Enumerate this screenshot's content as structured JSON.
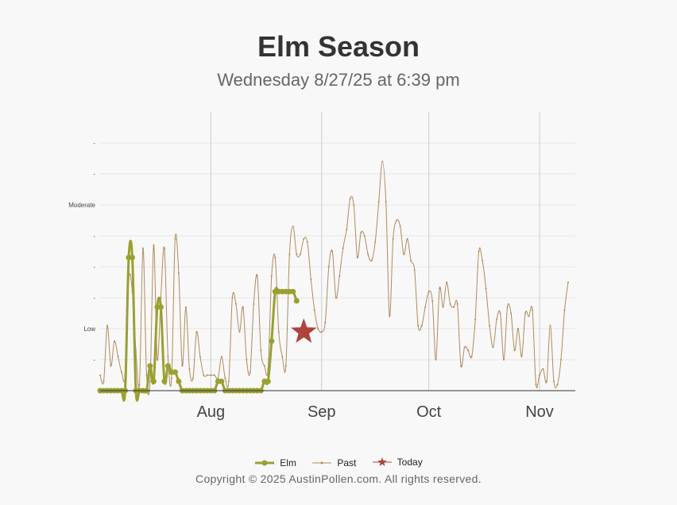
{
  "header": {
    "title": "Elm Season",
    "subtitle": "Wednesday 8/27/25 at 6:39 pm"
  },
  "footer": {
    "copyright": "Copyright © 2025 AustinPollen.com.  All rights reserved."
  },
  "colors": {
    "elm": "#99a032",
    "past": "#b08a5c",
    "today": "#b0413b",
    "grid": "#e6e6e6",
    "month_line": "#cccccc",
    "axis": "#333333"
  },
  "chart_data": {
    "type": "line",
    "x_axis": {
      "type": "date",
      "range": [
        "2025-07-01",
        "2025-11-11"
      ],
      "ticks": [
        {
          "date": "2025-08-01",
          "label": "Aug"
        },
        {
          "date": "2025-09-01",
          "label": "Sep"
        },
        {
          "date": "2025-10-01",
          "label": "Oct"
        },
        {
          "date": "2025-11-01",
          "label": "Nov"
        }
      ]
    },
    "y_axis": {
      "range": [
        0,
        9
      ],
      "ticks": [
        {
          "value": 1,
          "label": "-"
        },
        {
          "value": 2,
          "label": "Low"
        },
        {
          "value": 3,
          "label": "-"
        },
        {
          "value": 4,
          "label": "-"
        },
        {
          "value": 5,
          "label": "-"
        },
        {
          "value": 6,
          "label": "Moderate"
        },
        {
          "value": 7,
          "label": "-"
        },
        {
          "value": 8,
          "label": "-"
        }
      ]
    },
    "grid": true,
    "legend_position": "bottom",
    "series": [
      {
        "name": "Elm",
        "style": "line-markers",
        "points": [
          [
            "2025-07-01",
            0
          ],
          [
            "2025-07-02",
            0
          ],
          [
            "2025-07-03",
            0
          ],
          [
            "2025-07-04",
            0
          ],
          [
            "2025-07-05",
            0
          ],
          [
            "2025-07-06",
            0
          ],
          [
            "2025-07-07",
            0
          ],
          [
            "2025-07-08",
            0
          ],
          [
            "2025-07-09",
            4.3
          ],
          [
            "2025-07-10",
            4.3
          ],
          [
            "2025-07-11",
            0
          ],
          [
            "2025-07-12",
            0
          ],
          [
            "2025-07-13",
            0
          ],
          [
            "2025-07-14",
            0
          ],
          [
            "2025-07-15",
            0.8
          ],
          [
            "2025-07-16",
            0.3
          ],
          [
            "2025-07-17",
            2.7
          ],
          [
            "2025-07-18",
            2.7
          ],
          [
            "2025-07-19",
            0.3
          ],
          [
            "2025-07-20",
            0.8
          ],
          [
            "2025-07-21",
            0.6
          ],
          [
            "2025-07-22",
            0.6
          ],
          [
            "2025-07-23",
            0.3
          ],
          [
            "2025-07-24",
            0
          ],
          [
            "2025-07-25",
            0
          ],
          [
            "2025-07-26",
            0
          ],
          [
            "2025-07-27",
            0
          ],
          [
            "2025-07-28",
            0
          ],
          [
            "2025-07-29",
            0
          ],
          [
            "2025-07-30",
            0
          ],
          [
            "2025-07-31",
            0
          ],
          [
            "2025-08-01",
            0
          ],
          [
            "2025-08-02",
            0
          ],
          [
            "2025-08-03",
            0.3
          ],
          [
            "2025-08-04",
            0.3
          ],
          [
            "2025-08-05",
            0
          ],
          [
            "2025-08-06",
            0
          ],
          [
            "2025-08-07",
            0
          ],
          [
            "2025-08-08",
            0
          ],
          [
            "2025-08-09",
            0
          ],
          [
            "2025-08-10",
            0
          ],
          [
            "2025-08-11",
            0
          ],
          [
            "2025-08-12",
            0
          ],
          [
            "2025-08-13",
            0
          ],
          [
            "2025-08-14",
            0
          ],
          [
            "2025-08-15",
            0
          ],
          [
            "2025-08-16",
            0.3
          ],
          [
            "2025-08-17",
            0.3
          ],
          [
            "2025-08-18",
            1.6
          ],
          [
            "2025-08-19",
            3.2
          ],
          [
            "2025-08-20",
            3.2
          ],
          [
            "2025-08-21",
            3.2
          ],
          [
            "2025-08-22",
            3.2
          ],
          [
            "2025-08-23",
            3.2
          ],
          [
            "2025-08-24",
            3.2
          ],
          [
            "2025-08-25",
            2.9
          ]
        ]
      },
      {
        "name": "Past",
        "style": "thin-line",
        "points": [
          [
            "2025-07-01",
            0.5
          ],
          [
            "2025-07-02",
            0.3
          ],
          [
            "2025-07-03",
            2.1
          ],
          [
            "2025-07-04",
            0.8
          ],
          [
            "2025-07-05",
            1.6
          ],
          [
            "2025-07-06",
            1.1
          ],
          [
            "2025-07-07",
            0.6
          ],
          [
            "2025-07-08",
            0.5
          ],
          [
            "2025-07-09",
            3.6
          ],
          [
            "2025-07-10",
            3.2
          ],
          [
            "2025-07-11",
            1.3
          ],
          [
            "2025-07-12",
            0.2
          ],
          [
            "2025-07-13",
            4.6
          ],
          [
            "2025-07-14",
            0.5
          ],
          [
            "2025-07-15",
            0.3
          ],
          [
            "2025-07-16",
            4.7
          ],
          [
            "2025-07-17",
            1.0
          ],
          [
            "2025-07-18",
            3.0
          ],
          [
            "2025-07-19",
            4.6
          ],
          [
            "2025-07-20",
            1.1
          ],
          [
            "2025-07-21",
            0.4
          ],
          [
            "2025-07-22",
            4.9
          ],
          [
            "2025-07-23",
            3.8
          ],
          [
            "2025-07-24",
            0.8
          ],
          [
            "2025-07-25",
            2.7
          ],
          [
            "2025-07-26",
            0.7
          ],
          [
            "2025-07-27",
            0.4
          ],
          [
            "2025-07-28",
            1.9
          ],
          [
            "2025-07-29",
            1.1
          ],
          [
            "2025-07-30",
            0.5
          ],
          [
            "2025-07-31",
            0.5
          ],
          [
            "2025-08-01",
            0.5
          ],
          [
            "2025-08-02",
            0.5
          ],
          [
            "2025-08-03",
            0.4
          ],
          [
            "2025-08-04",
            1.1
          ],
          [
            "2025-08-05",
            0.4
          ],
          [
            "2025-08-06",
            0.3
          ],
          [
            "2025-08-07",
            3.0
          ],
          [
            "2025-08-08",
            2.8
          ],
          [
            "2025-08-09",
            1.9
          ],
          [
            "2025-08-10",
            2.7
          ],
          [
            "2025-08-11",
            1.0
          ],
          [
            "2025-08-12",
            0.6
          ],
          [
            "2025-08-13",
            2.8
          ],
          [
            "2025-08-14",
            3.7
          ],
          [
            "2025-08-15",
            1.3
          ],
          [
            "2025-08-16",
            0.8
          ],
          [
            "2025-08-17",
            0.7
          ],
          [
            "2025-08-18",
            3.7
          ],
          [
            "2025-08-19",
            4.3
          ],
          [
            "2025-08-20",
            1.9
          ],
          [
            "2025-08-21",
            1.1
          ],
          [
            "2025-08-22",
            0.8
          ],
          [
            "2025-08-23",
            4.4
          ],
          [
            "2025-08-24",
            5.3
          ],
          [
            "2025-08-25",
            4.4
          ],
          [
            "2025-08-26",
            4.4
          ],
          [
            "2025-08-27",
            4.9
          ],
          [
            "2025-08-28",
            4.8
          ],
          [
            "2025-08-29",
            3.6
          ],
          [
            "2025-08-30",
            2.6
          ],
          [
            "2025-08-31",
            2.0
          ],
          [
            "2025-09-01",
            1.9
          ],
          [
            "2025-09-02",
            2.2
          ],
          [
            "2025-09-03",
            4.0
          ],
          [
            "2025-09-04",
            4.5
          ],
          [
            "2025-09-05",
            3.0
          ],
          [
            "2025-09-06",
            3.7
          ],
          [
            "2025-09-07",
            4.6
          ],
          [
            "2025-09-08",
            5.2
          ],
          [
            "2025-09-09",
            6.2
          ],
          [
            "2025-09-10",
            6.0
          ],
          [
            "2025-09-11",
            4.3
          ],
          [
            "2025-09-12",
            5.1
          ],
          [
            "2025-09-13",
            5.0
          ],
          [
            "2025-09-14",
            4.4
          ],
          [
            "2025-09-15",
            4.2
          ],
          [
            "2025-09-16",
            4.8
          ],
          [
            "2025-09-17",
            6.1
          ],
          [
            "2025-09-18",
            7.4
          ],
          [
            "2025-09-19",
            6.1
          ],
          [
            "2025-09-20",
            2.4
          ],
          [
            "2025-09-21",
            4.9
          ],
          [
            "2025-09-22",
            5.5
          ],
          [
            "2025-09-23",
            5.3
          ],
          [
            "2025-09-24",
            4.4
          ],
          [
            "2025-09-25",
            4.9
          ],
          [
            "2025-09-26",
            4.2
          ],
          [
            "2025-09-27",
            3.9
          ],
          [
            "2025-09-28",
            2.1
          ],
          [
            "2025-09-29",
            2.1
          ],
          [
            "2025-09-30",
            2.7
          ],
          [
            "2025-10-01",
            3.2
          ],
          [
            "2025-10-02",
            2.9
          ],
          [
            "2025-10-03",
            1.0
          ],
          [
            "2025-10-04",
            3.3
          ],
          [
            "2025-10-05",
            2.7
          ],
          [
            "2025-10-06",
            3.5
          ],
          [
            "2025-10-07",
            2.8
          ],
          [
            "2025-10-08",
            2.7
          ],
          [
            "2025-10-09",
            2.8
          ],
          [
            "2025-10-10",
            0.8
          ],
          [
            "2025-10-11",
            1.4
          ],
          [
            "2025-10-12",
            1.3
          ],
          [
            "2025-10-13",
            1.1
          ],
          [
            "2025-10-14",
            2.3
          ],
          [
            "2025-10-15",
            4.5
          ],
          [
            "2025-10-16",
            4.2
          ],
          [
            "2025-10-17",
            3.3
          ],
          [
            "2025-10-18",
            2.1
          ],
          [
            "2025-10-19",
            1.4
          ],
          [
            "2025-10-20",
            2.3
          ],
          [
            "2025-10-21",
            2.5
          ],
          [
            "2025-10-22",
            1.0
          ],
          [
            "2025-10-23",
            2.7
          ],
          [
            "2025-10-24",
            2.5
          ],
          [
            "2025-10-25",
            1.3
          ],
          [
            "2025-10-26",
            2.0
          ],
          [
            "2025-10-27",
            1.1
          ],
          [
            "2025-10-28",
            2.5
          ],
          [
            "2025-10-29",
            2.4
          ],
          [
            "2025-10-30",
            2.6
          ],
          [
            "2025-10-31",
            0.2
          ],
          [
            "2025-11-01",
            0.5
          ],
          [
            "2025-11-02",
            0.7
          ],
          [
            "2025-11-03",
            0.3
          ],
          [
            "2025-11-04",
            2.1
          ],
          [
            "2025-11-05",
            0.3
          ],
          [
            "2025-11-06",
            0.2
          ],
          [
            "2025-11-07",
            1.0
          ],
          [
            "2025-11-08",
            2.6
          ],
          [
            "2025-11-09",
            3.5
          ]
        ]
      },
      {
        "name": "Today",
        "style": "star",
        "points": [
          [
            "2025-08-27",
            1.9
          ]
        ]
      }
    ]
  }
}
